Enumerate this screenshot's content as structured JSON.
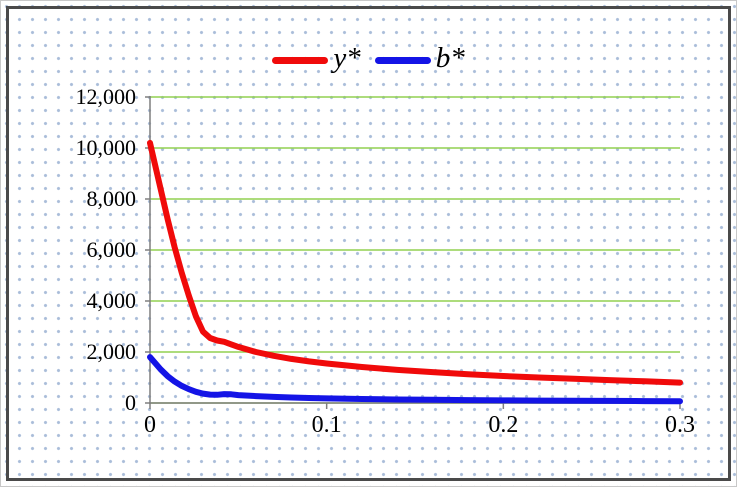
{
  "chart_data": {
    "type": "line",
    "title": "",
    "xlabel": "",
    "ylabel": "",
    "xlim": [
      0,
      0.3
    ],
    "ylim": [
      0,
      12000
    ],
    "xticks": [
      0,
      0.1,
      0.2,
      0.3
    ],
    "xtick_labels": [
      "0",
      "0.1",
      "0.2",
      "0.3"
    ],
    "yticks": [
      0,
      2000,
      4000,
      6000,
      8000,
      10000,
      12000
    ],
    "ytick_labels": [
      "0",
      "2,000",
      "4,000",
      "6,000",
      "8,000",
      "10,000",
      "12,000"
    ],
    "grid": "horizontal",
    "gridline_color": "#92d050",
    "axis_color": "#7f7f7f",
    "legend_position": "top-center",
    "x": [
      0,
      0.003,
      0.006,
      0.01,
      0.014,
      0.018,
      0.022,
      0.026,
      0.03,
      0.034,
      0.038,
      0.042,
      0.046,
      0.05,
      0.06,
      0.07,
      0.08,
      0.09,
      0.1,
      0.12,
      0.14,
      0.16,
      0.18,
      0.2,
      0.22,
      0.24,
      0.26,
      0.28,
      0.3
    ],
    "series": [
      {
        "id": "y-star",
        "name": "y*",
        "color": "#f00a0a",
        "values": [
          10200,
          9300,
          8400,
          7200,
          6100,
          5100,
          4200,
          3400,
          2800,
          2550,
          2450,
          2400,
          2300,
          2200,
          2000,
          1850,
          1730,
          1630,
          1550,
          1410,
          1300,
          1210,
          1130,
          1060,
          1000,
          950,
          900,
          850,
          800
        ]
      },
      {
        "id": "b-star",
        "name": "b*",
        "color": "#1414e6",
        "values": [
          1800,
          1560,
          1320,
          1050,
          840,
          670,
          540,
          440,
          370,
          330,
          320,
          350,
          340,
          310,
          270,
          240,
          215,
          195,
          180,
          155,
          138,
          124,
          112,
          102,
          94,
          87,
          81,
          76,
          72
        ]
      }
    ]
  },
  "legend": {
    "items": [
      {
        "label": "y*",
        "color": "#f00a0a"
      },
      {
        "label": "b*",
        "color": "#1414e6"
      }
    ]
  },
  "background": {
    "dot_color": "#a9bdd9",
    "border_color": "#4a4a4a"
  }
}
